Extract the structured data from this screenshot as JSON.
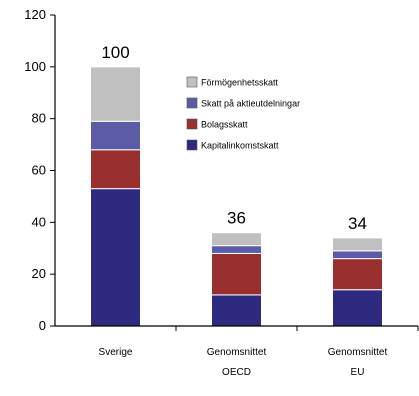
{
  "chart_data": {
    "type": "bar",
    "stacked": true,
    "categories": [
      [
        "Sverige"
      ],
      [
        "Genomsnittet",
        "OECD"
      ],
      [
        "Genomsnittet",
        "EU"
      ]
    ],
    "series": [
      {
        "name": "Kapitalinkomstskatt",
        "color": "#2e2a7f",
        "values": [
          53,
          12,
          14
        ]
      },
      {
        "name": "Bolagsskatt",
        "color": "#9a2f2f",
        "values": [
          15,
          16,
          12
        ]
      },
      {
        "name": "Skatt på aktieutdelningar",
        "color": "#5c5ca6",
        "values": [
          11,
          3,
          3
        ]
      },
      {
        "name": "Förmögenhetsskatt",
        "color": "#c0c0c0",
        "values": [
          21,
          5,
          5
        ]
      }
    ],
    "data_labels": [
      "100",
      "36",
      "34"
    ],
    "ylim": [
      0,
      120
    ],
    "yticks": [
      0,
      20,
      40,
      60,
      80,
      100,
      120
    ],
    "legend_order": [
      "Förmögenhetsskatt",
      "Skatt på aktieutdelningar",
      "Bolagsskatt",
      "Kapitalinkomstskatt"
    ],
    "legend_position": "top-right",
    "grid": false
  }
}
